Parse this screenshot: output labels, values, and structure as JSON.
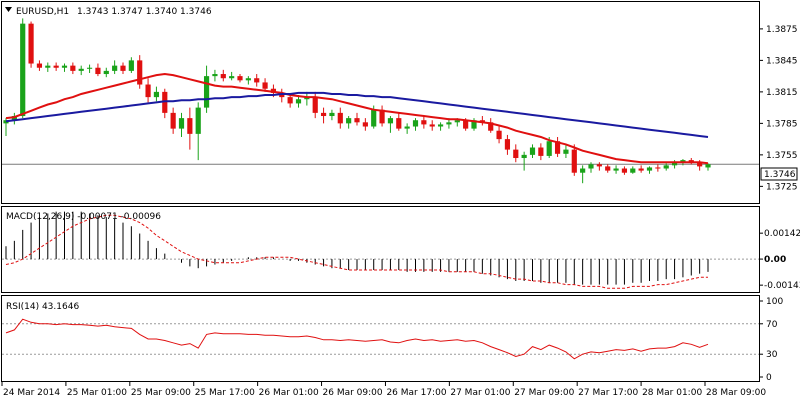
{
  "header": {
    "symbol": "EURUSD,H1",
    "ohlc": "1.3743 1.3747 1.3740 1.3746"
  },
  "colors": {
    "bull": "#1aa31a",
    "bear": "#e01010",
    "ma_fast": "#e01010",
    "ma_slow": "#1a1aa0",
    "hist": "#000000",
    "signal": "#e01010",
    "rsi": "#e01010",
    "frame": "#000000"
  },
  "chart_data": [
    {
      "type": "candlestick",
      "title": "EURUSD,H1",
      "ylim": [
        1.3712,
        1.3893
      ],
      "y_ticks": [
        "1.3875",
        "1.3845",
        "1.3815",
        "1.3785",
        "1.3755",
        "1.3725"
      ],
      "current_price": "1.3746",
      "x_ticks": [
        "24 Mar 2014",
        "25 Mar 01:00",
        "25 Mar 09:00",
        "25 Mar 17:00",
        "26 Mar 01:00",
        "26 Mar 09:00",
        "26 Mar 17:00",
        "27 Mar 01:00",
        "27 Mar 09:00",
        "27 Mar 17:00",
        "28 Mar 01:00",
        "28 Mar 09:00"
      ],
      "candles": [
        [
          1.3785,
          1.379,
          1.3773,
          1.3788
        ],
        [
          1.3788,
          1.3795,
          1.3784,
          1.3792
        ],
        [
          1.3792,
          1.3885,
          1.379,
          1.388
        ],
        [
          1.388,
          1.3882,
          1.3838,
          1.3842
        ],
        [
          1.3842,
          1.3845,
          1.3835,
          1.3838
        ],
        [
          1.3838,
          1.3843,
          1.3834,
          1.384
        ],
        [
          1.384,
          1.3843,
          1.3835,
          1.3838
        ],
        [
          1.3838,
          1.3842,
          1.3834,
          1.384
        ],
        [
          1.384,
          1.3843,
          1.3832,
          1.3835
        ],
        [
          1.3835,
          1.384,
          1.3831,
          1.3837
        ],
        [
          1.3837,
          1.3841,
          1.3833,
          1.3838
        ],
        [
          1.3838,
          1.3842,
          1.383,
          1.3832
        ],
        [
          1.3832,
          1.3838,
          1.3829,
          1.3835
        ],
        [
          1.3835,
          1.3845,
          1.3832,
          1.384
        ],
        [
          1.384,
          1.3843,
          1.3832,
          1.3835
        ],
        [
          1.3835,
          1.3848,
          1.3833,
          1.3845
        ],
        [
          1.3845,
          1.385,
          1.3818,
          1.3822
        ],
        [
          1.3822,
          1.3828,
          1.3805,
          1.381
        ],
        [
          1.381,
          1.382,
          1.3806,
          1.3815
        ],
        [
          1.3815,
          1.3818,
          1.379,
          1.3795
        ],
        [
          1.3795,
          1.38,
          1.3775,
          1.378
        ],
        [
          1.378,
          1.3795,
          1.3772,
          1.379
        ],
        [
          1.379,
          1.38,
          1.376,
          1.3775
        ],
        [
          1.3775,
          1.3805,
          1.375,
          1.38
        ],
        [
          1.38,
          1.384,
          1.3795,
          1.383
        ],
        [
          1.383,
          1.3836,
          1.3825,
          1.3832
        ],
        [
          1.3832,
          1.3836,
          1.3825,
          1.3828
        ],
        [
          1.3828,
          1.3834,
          1.3826,
          1.383
        ],
        [
          1.383,
          1.3832,
          1.3824,
          1.3826
        ],
        [
          1.3826,
          1.383,
          1.3822,
          1.3828
        ],
        [
          1.3828,
          1.3832,
          1.382,
          1.3824
        ],
        [
          1.3824,
          1.3828,
          1.3815,
          1.3818
        ],
        [
          1.3818,
          1.3822,
          1.381,
          1.3814
        ],
        [
          1.3814,
          1.3818,
          1.3805,
          1.381
        ],
        [
          1.381,
          1.3812,
          1.38,
          1.3804
        ],
        [
          1.3804,
          1.3812,
          1.38,
          1.3808
        ],
        [
          1.3808,
          1.3815,
          1.3802,
          1.381
        ],
        [
          1.381,
          1.3815,
          1.379,
          1.3795
        ],
        [
          1.3795,
          1.38,
          1.3785,
          1.3792
        ],
        [
          1.3792,
          1.3798,
          1.3788,
          1.3795
        ],
        [
          1.3795,
          1.38,
          1.378,
          1.3785
        ],
        [
          1.3785,
          1.3792,
          1.378,
          1.379
        ],
        [
          1.379,
          1.3795,
          1.3783,
          1.3786
        ],
        [
          1.3786,
          1.379,
          1.3778,
          1.3782
        ],
        [
          1.3782,
          1.3802,
          1.378,
          1.3798
        ],
        [
          1.3798,
          1.3802,
          1.3782,
          1.3785
        ],
        [
          1.3785,
          1.3792,
          1.3776,
          1.379
        ],
        [
          1.379,
          1.3795,
          1.3778,
          1.378
        ],
        [
          1.378,
          1.3785,
          1.3775,
          1.3782
        ],
        [
          1.3782,
          1.379,
          1.3778,
          1.3788
        ],
        [
          1.3788,
          1.3792,
          1.378,
          1.3784
        ],
        [
          1.3784,
          1.3788,
          1.3778,
          1.3782
        ],
        [
          1.3782,
          1.3786,
          1.3778,
          1.3784
        ],
        [
          1.3784,
          1.379,
          1.378,
          1.3786
        ],
        [
          1.3786,
          1.379,
          1.3782,
          1.3788
        ],
        [
          1.3788,
          1.379,
          1.3778,
          1.378
        ],
        [
          1.378,
          1.379,
          1.3778,
          1.3788
        ],
        [
          1.3788,
          1.3792,
          1.3783,
          1.3786
        ],
        [
          1.3786,
          1.379,
          1.3776,
          1.3778
        ],
        [
          1.3778,
          1.3782,
          1.3766,
          1.377
        ],
        [
          1.377,
          1.3774,
          1.3755,
          1.376
        ],
        [
          1.376,
          1.3765,
          1.3748,
          1.3752
        ],
        [
          1.3752,
          1.3758,
          1.374,
          1.3755
        ],
        [
          1.3755,
          1.3765,
          1.3752,
          1.3762
        ],
        [
          1.3762,
          1.3766,
          1.375,
          1.3754
        ],
        [
          1.3754,
          1.3772,
          1.3752,
          1.3768
        ],
        [
          1.3768,
          1.3772,
          1.3753,
          1.3756
        ],
        [
          1.3756,
          1.3764,
          1.3752,
          1.376
        ],
        [
          1.376,
          1.3765,
          1.3735,
          1.3738
        ],
        [
          1.3738,
          1.3745,
          1.3728,
          1.3742
        ],
        [
          1.3742,
          1.3748,
          1.3738,
          1.3746
        ],
        [
          1.3746,
          1.3748,
          1.374,
          1.3744
        ],
        [
          1.3744,
          1.3746,
          1.3738,
          1.374
        ],
        [
          1.374,
          1.3745,
          1.3737,
          1.3742
        ],
        [
          1.3742,
          1.3744,
          1.3736,
          1.3738
        ],
        [
          1.3738,
          1.3744,
          1.3737,
          1.3742
        ],
        [
          1.3742,
          1.3745,
          1.3738,
          1.374
        ],
        [
          1.374,
          1.3744,
          1.3737,
          1.3743
        ],
        [
          1.3743,
          1.3746,
          1.3739,
          1.3742
        ],
        [
          1.3742,
          1.3747,
          1.374,
          1.3745
        ],
        [
          1.3745,
          1.375,
          1.3742,
          1.3748
        ],
        [
          1.3748,
          1.3751,
          1.3745,
          1.375
        ],
        [
          1.375,
          1.3752,
          1.3746,
          1.3748
        ],
        [
          1.3748,
          1.375,
          1.374,
          1.3744
        ],
        [
          1.3743,
          1.3747,
          1.374,
          1.3746
        ]
      ],
      "series": [
        {
          "type": "line",
          "values": [
            1.379,
            1.3791,
            1.3794,
            1.3797,
            1.38,
            1.3803,
            1.3805,
            1.3808,
            1.381,
            1.3813,
            1.3815,
            1.3817,
            1.3819,
            1.3821,
            1.3823,
            1.3825,
            1.3827,
            1.3829,
            1.3831,
            1.3832,
            1.3831,
            1.3829,
            1.3827,
            1.3825,
            1.3823,
            1.3821,
            1.382,
            1.382,
            1.3819,
            1.3818,
            1.3817,
            1.3816,
            1.3815,
            1.3814,
            1.3812,
            1.3811,
            1.381,
            1.381,
            1.3809,
            1.3808,
            1.3806,
            1.3804,
            1.3802,
            1.38,
            1.3798,
            1.3797,
            1.3796,
            1.3795,
            1.3794,
            1.3793,
            1.3792,
            1.3791,
            1.379,
            1.3789,
            1.3789,
            1.3788,
            1.3787,
            1.3786,
            1.3785,
            1.3783,
            1.3781,
            1.3778,
            1.3776,
            1.3774,
            1.3772,
            1.3769,
            1.3767,
            1.3765,
            1.3762,
            1.3759,
            1.3757,
            1.3755,
            1.3753,
            1.3751,
            1.375,
            1.3749,
            1.3748,
            1.3748,
            1.3748,
            1.3748,
            1.3748,
            1.3748,
            1.3748,
            1.3748,
            1.3747
          ]
        },
        {
          "type": "line",
          "values": [
            1.3787,
            1.3788,
            1.3789,
            1.379,
            1.3791,
            1.3792,
            1.3793,
            1.3794,
            1.3795,
            1.3796,
            1.3797,
            1.3798,
            1.3799,
            1.38,
            1.3801,
            1.3802,
            1.3803,
            1.3804,
            1.3805,
            1.3806,
            1.3806,
            1.3807,
            1.3807,
            1.3808,
            1.3808,
            1.3809,
            1.3809,
            1.381,
            1.381,
            1.3811,
            1.3811,
            1.3812,
            1.3812,
            1.3813,
            1.3813,
            1.3814,
            1.3814,
            1.3814,
            1.3814,
            1.3813,
            1.3813,
            1.3812,
            1.3812,
            1.3811,
            1.3811,
            1.381,
            1.381,
            1.3809,
            1.3808,
            1.3807,
            1.3806,
            1.3805,
            1.3804,
            1.3803,
            1.3802,
            1.3801,
            1.38,
            1.3799,
            1.3798,
            1.3797,
            1.3796,
            1.3795,
            1.3794,
            1.3793,
            1.3792,
            1.3791,
            1.379,
            1.3789,
            1.3788,
            1.3787,
            1.3786,
            1.3785,
            1.3784,
            1.3783,
            1.3782,
            1.3781,
            1.378,
            1.3779,
            1.3778,
            1.3777,
            1.3776,
            1.3775,
            1.3774,
            1.3773,
            1.3772
          ]
        }
      ]
    },
    {
      "type": "bar",
      "title": "MACD(12,26,9) -0.00071 -0.00096",
      "ylim": [
        -0.00175,
        0.0028
      ],
      "y_ticks": [
        "0.00142",
        "0.00",
        "-0.00143"
      ],
      "values": [
        0.0007,
        0.001,
        0.0016,
        0.002,
        0.0023,
        0.0025,
        0.0026,
        0.0026,
        0.0026,
        0.0026,
        0.0025,
        0.0024,
        0.0023,
        0.0022,
        0.002,
        0.0018,
        0.0014,
        0.001,
        0.0006,
        0.0003,
        0.0,
        -0.0002,
        -0.0004,
        -0.0005,
        -0.0004,
        -0.0003,
        -0.0002,
        -0.0001,
        0.0,
        0.0001,
        0.0001,
        0.0001,
        0.0001,
        0.0,
        -0.0001,
        -0.0001,
        -0.0002,
        -0.0003,
        -0.0004,
        -0.0005,
        -0.0005,
        -0.0006,
        -0.0006,
        -0.0006,
        -0.0006,
        -0.0006,
        -0.0006,
        -0.0006,
        -0.0007,
        -0.0007,
        -0.0007,
        -0.0007,
        -0.0007,
        -0.0007,
        -0.0007,
        -0.0007,
        -0.0007,
        -0.0008,
        -0.0009,
        -0.001,
        -0.0011,
        -0.0012,
        -0.0012,
        -0.0012,
        -0.0013,
        -0.0013,
        -0.0013,
        -0.0013,
        -0.0014,
        -0.0014,
        -0.0014,
        -0.0014,
        -0.0014,
        -0.0014,
        -0.0014,
        -0.0013,
        -0.0013,
        -0.0012,
        -0.0012,
        -0.0011,
        -0.0011,
        -0.001,
        -0.0009,
        -0.0008,
        -0.0007
      ],
      "series": [
        {
          "type": "line",
          "dashed": true,
          "values": [
            -0.0003,
            -0.0002,
            0.0,
            0.0003,
            0.0006,
            0.0009,
            0.0012,
            0.0015,
            0.0018,
            0.002,
            0.0022,
            0.0023,
            0.0024,
            0.0024,
            0.0023,
            0.0022,
            0.002,
            0.0017,
            0.0013,
            0.001,
            0.0007,
            0.0004,
            0.0002,
            0.0,
            -0.0001,
            -0.0002,
            -0.0002,
            -0.0002,
            -0.0002,
            -0.0001,
            0.0,
            0.0001,
            0.0001,
            0.0001,
            0.0001,
            0.0,
            -0.0001,
            -0.0002,
            -0.0003,
            -0.0004,
            -0.0005,
            -0.0006,
            -0.0006,
            -0.0006,
            -0.0006,
            -0.0006,
            -0.0006,
            -0.0006,
            -0.0006,
            -0.0006,
            -0.0006,
            -0.0006,
            -0.0006,
            -0.0007,
            -0.0007,
            -0.0007,
            -0.0007,
            -0.0008,
            -0.0008,
            -0.0009,
            -0.001,
            -0.0011,
            -0.0011,
            -0.0012,
            -0.0012,
            -0.0013,
            -0.0013,
            -0.0014,
            -0.0014,
            -0.0015,
            -0.0015,
            -0.0015,
            -0.0016,
            -0.0016,
            -0.0016,
            -0.0015,
            -0.0015,
            -0.0015,
            -0.0014,
            -0.0014,
            -0.0013,
            -0.0012,
            -0.0011,
            -0.001,
            -0.001
          ]
        }
      ]
    },
    {
      "type": "line",
      "title": "RSI(14) 43.1646",
      "ylim": [
        0,
        100
      ],
      "y_ticks": [
        "100",
        "70",
        "30",
        "0"
      ],
      "levels": [
        70,
        30
      ],
      "values": [
        58,
        62,
        76,
        72,
        70,
        70,
        69,
        70,
        69,
        69,
        68,
        67,
        68,
        66,
        65,
        64,
        56,
        50,
        50,
        48,
        45,
        42,
        44,
        38,
        56,
        58,
        57,
        57,
        57,
        56,
        56,
        55,
        55,
        54,
        53,
        53,
        54,
        52,
        49,
        49,
        48,
        49,
        48,
        47,
        48,
        49,
        46,
        45,
        48,
        50,
        48,
        49,
        47,
        48,
        49,
        47,
        48,
        45,
        40,
        36,
        32,
        27,
        30,
        40,
        36,
        42,
        38,
        33,
        24,
        30,
        33,
        32,
        34,
        36,
        35,
        37,
        34,
        37,
        38,
        38,
        40,
        45,
        43,
        39,
        43
      ]
    }
  ]
}
